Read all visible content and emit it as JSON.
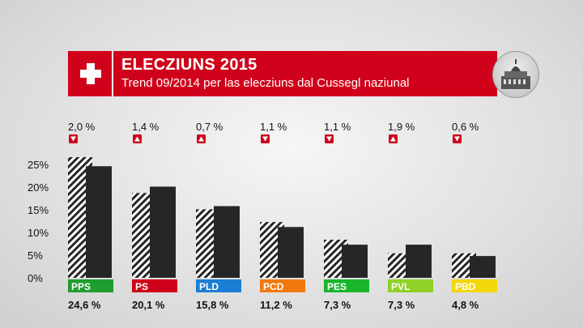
{
  "header": {
    "title": "ELECZIUNS 2015",
    "subtitle": "Trend 09/2014 per las elecziuns dal Cussegl naziunal",
    "brand_color": "#d0021b"
  },
  "chart_data": {
    "type": "bar",
    "categories": [
      "PPS",
      "PS",
      "PLD",
      "PCD",
      "PES",
      "PVL",
      "PBD"
    ],
    "series": [
      {
        "values": [
          26.6,
          18.7,
          15.1,
          12.3,
          8.4,
          5.4,
          5.4
        ],
        "style": "hatched"
      },
      {
        "values": [
          24.6,
          20.1,
          15.8,
          11.2,
          7.3,
          7.3,
          4.8
        ],
        "style": "solid"
      }
    ],
    "value_labels": [
      "24,6 %",
      "20,1 %",
      "15,8 %",
      "11,2 %",
      "7,3 %",
      "7,3 %",
      "4,8 %"
    ],
    "changes": [
      {
        "label": "2,0 %",
        "direction": "down"
      },
      {
        "label": "1,4 %",
        "direction": "up"
      },
      {
        "label": "0,7 %",
        "direction": "up"
      },
      {
        "label": "1,1 %",
        "direction": "down"
      },
      {
        "label": "1,1 %",
        "direction": "down"
      },
      {
        "label": "1,9 %",
        "direction": "up"
      },
      {
        "label": "0,6 %",
        "direction": "down"
      }
    ],
    "party_colors": [
      "#1f9d2e",
      "#d0021b",
      "#1a7fd4",
      "#f07a10",
      "#19b52c",
      "#8fd126",
      "#f2d80a"
    ],
    "yticks": [
      "0%",
      "5%",
      "10%",
      "15%",
      "20%",
      "25%"
    ],
    "ylim": [
      0,
      30
    ],
    "grid": false
  }
}
